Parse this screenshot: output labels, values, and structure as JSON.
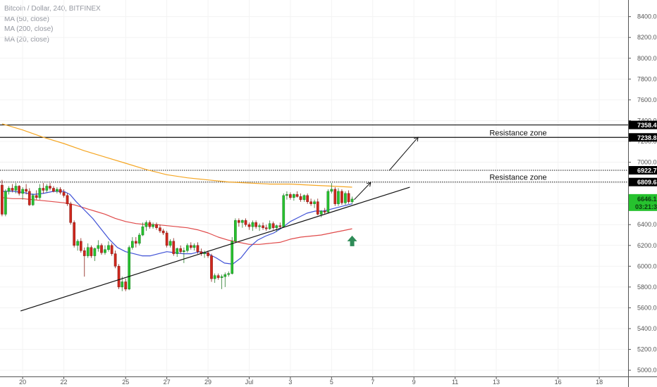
{
  "chart_data": {
    "type": "candlestick",
    "title": "Bitcoin / Dollar, 240, BITFINEX",
    "indicators": [
      {
        "name": "MA (50, close)",
        "color": "#e04a4a"
      },
      {
        "name": "MA (200, close)",
        "color": "#f5a623"
      },
      {
        "name": "MA (20, close)",
        "color": "#3f51d6"
      }
    ],
    "y_ticks": [
      5000,
      5200,
      5400,
      5600,
      5800,
      6000,
      6200,
      6400,
      6600,
      6800,
      7000,
      7200,
      7400,
      7600,
      7800,
      8000,
      8200,
      8400
    ],
    "y_tick_labels": [
      "5000.0",
      "5200.0",
      "5400.0",
      "5600.0",
      "5800.0",
      "6000.0",
      "6200.0",
      "6400.0",
      "6600.0",
      "6800.0",
      "7000.0",
      "7200.0",
      "7400.0",
      "7600.0",
      "7800.0",
      "8000.0",
      "8200.0",
      "8400.0"
    ],
    "ylim": [
      4940,
      8560
    ],
    "x_ticks": [
      {
        "label": "20",
        "day": 0
      },
      {
        "label": "22",
        "day": 2
      },
      {
        "label": "25",
        "day": 5
      },
      {
        "label": "27",
        "day": 7
      },
      {
        "label": "29",
        "day": 9
      },
      {
        "label": "Jul",
        "day": 11
      },
      {
        "label": "3",
        "day": 13
      },
      {
        "label": "5",
        "day": 15
      },
      {
        "label": "7",
        "day": 17
      },
      {
        "label": "9",
        "day": 19
      },
      {
        "label": "11",
        "day": 21
      },
      {
        "label": "13",
        "day": 23
      },
      {
        "label": "16",
        "day": 26
      },
      {
        "label": "18",
        "day": 28
      }
    ],
    "xlim": [
      -1.1,
      29.4
    ],
    "candles": [
      [
        -1.0,
        6780,
        6830,
        6480,
        6500
      ],
      [
        -0.83,
        6500,
        6740,
        6480,
        6720
      ],
      [
        -0.67,
        6720,
        6770,
        6690,
        6750
      ],
      [
        -0.5,
        6750,
        6790,
        6710,
        6730
      ],
      [
        -0.33,
        6730,
        6800,
        6700,
        6770
      ],
      [
        -0.17,
        6770,
        6780,
        6680,
        6700
      ],
      [
        0.0,
        6700,
        6760,
        6640,
        6740
      ],
      [
        0.17,
        6740,
        6790,
        6690,
        6720
      ],
      [
        0.33,
        6720,
        6750,
        6580,
        6590
      ],
      [
        0.5,
        6590,
        6700,
        6580,
        6680
      ],
      [
        0.67,
        6680,
        6730,
        6640,
        6660
      ],
      [
        0.83,
        6660,
        6790,
        6640,
        6750
      ],
      [
        1.0,
        6750,
        6800,
        6700,
        6730
      ],
      [
        1.17,
        6730,
        6790,
        6710,
        6770
      ],
      [
        1.33,
        6770,
        6800,
        6730,
        6750
      ],
      [
        1.5,
        6750,
        6770,
        6710,
        6720
      ],
      [
        1.67,
        6720,
        6760,
        6700,
        6740
      ],
      [
        1.83,
        6740,
        6760,
        6690,
        6710
      ],
      [
        2.0,
        6710,
        6740,
        6660,
        6680
      ],
      [
        2.17,
        6680,
        6700,
        6580,
        6600
      ],
      [
        2.33,
        6600,
        6620,
        6400,
        6420
      ],
      [
        2.5,
        6420,
        6440,
        6180,
        6200
      ],
      [
        2.67,
        6200,
        6260,
        6150,
        6240
      ],
      [
        2.83,
        6240,
        6270,
        6130,
        6150
      ],
      [
        3.0,
        6150,
        6180,
        5900,
        6100
      ],
      [
        3.17,
        6100,
        6220,
        6080,
        6180
      ],
      [
        3.33,
        6180,
        6200,
        6080,
        6100
      ],
      [
        3.5,
        6100,
        6180,
        6050,
        6170
      ],
      [
        3.67,
        6170,
        6250,
        6140,
        6200
      ],
      [
        3.83,
        6200,
        6220,
        6110,
        6130
      ],
      [
        4.0,
        6130,
        6200,
        6110,
        6160
      ],
      [
        4.17,
        6160,
        6240,
        6140,
        6200
      ],
      [
        4.33,
        6200,
        6220,
        6100,
        6120
      ],
      [
        4.5,
        6120,
        6150,
        5980,
        6000
      ],
      [
        4.67,
        6000,
        6020,
        5780,
        5800
      ],
      [
        4.83,
        5800,
        5900,
        5760,
        5850
      ],
      [
        5.0,
        5850,
        5880,
        5760,
        5780
      ],
      [
        5.17,
        5780,
        6200,
        5770,
        6180
      ],
      [
        5.33,
        6180,
        6280,
        6160,
        6240
      ],
      [
        5.5,
        6240,
        6280,
        6180,
        6220
      ],
      [
        5.67,
        6220,
        6320,
        6200,
        6300
      ],
      [
        5.83,
        6300,
        6420,
        6290,
        6380
      ],
      [
        6.0,
        6380,
        6440,
        6340,
        6420
      ],
      [
        6.17,
        6420,
        6440,
        6360,
        6380
      ],
      [
        6.33,
        6380,
        6420,
        6360,
        6400
      ],
      [
        6.5,
        6400,
        6420,
        6350,
        6370
      ],
      [
        6.67,
        6370,
        6400,
        6320,
        6340
      ],
      [
        6.83,
        6340,
        6360,
        6300,
        6320
      ],
      [
        7.0,
        6320,
        6340,
        6180,
        6200
      ],
      [
        7.17,
        6200,
        6260,
        6180,
        6240
      ],
      [
        7.33,
        6240,
        6270,
        6100,
        6120
      ],
      [
        7.5,
        6120,
        6180,
        6090,
        6170
      ],
      [
        7.67,
        6170,
        6200,
        6120,
        6140
      ],
      [
        7.83,
        6140,
        6180,
        6030,
        6150
      ],
      [
        8.0,
        6150,
        6220,
        6130,
        6200
      ],
      [
        8.17,
        6200,
        6230,
        6160,
        6180
      ],
      [
        8.33,
        6180,
        6220,
        6150,
        6200
      ],
      [
        8.5,
        6200,
        6230,
        6120,
        6140
      ],
      [
        8.67,
        6140,
        6170,
        6100,
        6120
      ],
      [
        8.83,
        6120,
        6150,
        6080,
        6130
      ],
      [
        9.0,
        6130,
        6150,
        6080,
        6100
      ],
      [
        9.17,
        6100,
        6120,
        5850,
        5880
      ],
      [
        9.33,
        5880,
        5930,
        5840,
        5910
      ],
      [
        9.5,
        5910,
        5930,
        5870,
        5890
      ],
      [
        9.67,
        5890,
        5920,
        5780,
        5900
      ],
      [
        9.83,
        5900,
        5940,
        5800,
        5920
      ],
      [
        10.0,
        5920,
        5950,
        5900,
        5930
      ],
      [
        10.17,
        5930,
        6280,
        5920,
        6240
      ],
      [
        10.33,
        6240,
        6460,
        6230,
        6440
      ],
      [
        10.5,
        6440,
        6460,
        6380,
        6420
      ],
      [
        10.67,
        6420,
        6450,
        6370,
        6440
      ],
      [
        10.83,
        6440,
        6460,
        6380,
        6400
      ],
      [
        11.0,
        6400,
        6420,
        6350,
        6380
      ],
      [
        11.17,
        6380,
        6440,
        6340,
        6420
      ],
      [
        11.33,
        6420,
        6440,
        6360,
        6380
      ],
      [
        11.5,
        6380,
        6410,
        6340,
        6390
      ],
      [
        11.67,
        6390,
        6420,
        6350,
        6370
      ],
      [
        11.83,
        6370,
        6400,
        6340,
        6360
      ],
      [
        12.0,
        6360,
        6440,
        6350,
        6410
      ],
      [
        12.17,
        6410,
        6430,
        6350,
        6370
      ],
      [
        12.33,
        6370,
        6400,
        6330,
        6390
      ],
      [
        12.5,
        6390,
        6420,
        6360,
        6380
      ],
      [
        12.67,
        6380,
        6700,
        6370,
        6680
      ],
      [
        12.83,
        6680,
        6720,
        6640,
        6690
      ],
      [
        13.0,
        6690,
        6710,
        6640,
        6660
      ],
      [
        13.17,
        6660,
        6700,
        6630,
        6690
      ],
      [
        13.33,
        6690,
        6720,
        6660,
        6670
      ],
      [
        13.5,
        6670,
        6700,
        6620,
        6640
      ],
      [
        13.67,
        6640,
        6690,
        6620,
        6680
      ],
      [
        13.83,
        6680,
        6700,
        6600,
        6620
      ],
      [
        14.0,
        6620,
        6650,
        6580,
        6600
      ],
      [
        14.17,
        6600,
        6640,
        6560,
        6620
      ],
      [
        14.33,
        6620,
        6650,
        6490,
        6500
      ],
      [
        14.5,
        6500,
        6540,
        6470,
        6530
      ],
      [
        14.67,
        6530,
        6560,
        6500,
        6520
      ],
      [
        14.83,
        6520,
        6740,
        6510,
        6720
      ],
      [
        15.0,
        6720,
        6800,
        6700,
        6740
      ],
      [
        15.17,
        6740,
        6760,
        6580,
        6600
      ],
      [
        15.33,
        6600,
        6750,
        6580,
        6720
      ],
      [
        15.5,
        6720,
        6740,
        6590,
        6610
      ],
      [
        15.67,
        6610,
        6720,
        6590,
        6700
      ],
      [
        15.83,
        6700,
        6730,
        6600,
        6620
      ],
      [
        16.0,
        6620,
        6670,
        6600,
        6646
      ]
    ],
    "ma20": [
      [
        -1.0,
        6720
      ],
      [
        -0.5,
        6720
      ],
      [
        0.0,
        6710
      ],
      [
        0.5,
        6690
      ],
      [
        1.0,
        6700
      ],
      [
        1.5,
        6720
      ],
      [
        2.0,
        6720
      ],
      [
        2.3,
        6690
      ],
      [
        2.6,
        6620
      ],
      [
        3.0,
        6540
      ],
      [
        3.4,
        6460
      ],
      [
        3.8,
        6360
      ],
      [
        4.2,
        6260
      ],
      [
        4.6,
        6180
      ],
      [
        5.0,
        6140
      ],
      [
        5.4,
        6120
      ],
      [
        5.8,
        6100
      ],
      [
        6.2,
        6100
      ],
      [
        6.6,
        6120
      ],
      [
        7.0,
        6140
      ],
      [
        7.4,
        6130
      ],
      [
        7.8,
        6120
      ],
      [
        8.2,
        6120
      ],
      [
        8.6,
        6140
      ],
      [
        9.0,
        6120
      ],
      [
        9.4,
        6080
      ],
      [
        9.8,
        6030
      ],
      [
        10.2,
        6020
      ],
      [
        10.6,
        6080
      ],
      [
        11.0,
        6180
      ],
      [
        11.4,
        6250
      ],
      [
        11.8,
        6290
      ],
      [
        12.2,
        6320
      ],
      [
        12.6,
        6370
      ],
      [
        13.0,
        6430
      ],
      [
        13.4,
        6470
      ],
      [
        13.8,
        6510
      ],
      [
        14.2,
        6530
      ],
      [
        14.6,
        6530
      ],
      [
        15.0,
        6550
      ],
      [
        15.4,
        6570
      ],
      [
        15.8,
        6590
      ],
      [
        16.0,
        6600
      ]
    ],
    "ma50": [
      [
        -1.0,
        6660
      ],
      [
        -0.5,
        6650
      ],
      [
        0.0,
        6650
      ],
      [
        0.5,
        6640
      ],
      [
        1.0,
        6630
      ],
      [
        1.5,
        6620
      ],
      [
        2.0,
        6610
      ],
      [
        2.5,
        6590
      ],
      [
        3.0,
        6560
      ],
      [
        3.5,
        6530
      ],
      [
        4.0,
        6500
      ],
      [
        4.5,
        6460
      ],
      [
        5.0,
        6430
      ],
      [
        5.5,
        6410
      ],
      [
        6.0,
        6400
      ],
      [
        6.5,
        6400
      ],
      [
        7.0,
        6390
      ],
      [
        7.5,
        6380
      ],
      [
        8.0,
        6370
      ],
      [
        8.5,
        6350
      ],
      [
        9.0,
        6320
      ],
      [
        9.5,
        6280
      ],
      [
        10.0,
        6250
      ],
      [
        10.5,
        6230
      ],
      [
        11.0,
        6210
      ],
      [
        11.5,
        6210
      ],
      [
        12.0,
        6220
      ],
      [
        12.5,
        6230
      ],
      [
        13.0,
        6260
      ],
      [
        13.5,
        6280
      ],
      [
        14.0,
        6290
      ],
      [
        14.5,
        6300
      ],
      [
        15.0,
        6320
      ],
      [
        15.5,
        6340
      ],
      [
        16.0,
        6360
      ]
    ],
    "ma200": [
      [
        -1.0,
        7370
      ],
      [
        0.0,
        7310
      ],
      [
        1.0,
        7240
      ],
      [
        2.0,
        7180
      ],
      [
        3.0,
        7110
      ],
      [
        4.0,
        7050
      ],
      [
        5.0,
        6990
      ],
      [
        6.0,
        6930
      ],
      [
        7.0,
        6880
      ],
      [
        8.0,
        6850
      ],
      [
        9.0,
        6830
      ],
      [
        10.0,
        6810
      ],
      [
        11.0,
        6800
      ],
      [
        12.0,
        6790
      ],
      [
        13.0,
        6790
      ],
      [
        14.0,
        6780
      ],
      [
        15.0,
        6770
      ],
      [
        16.0,
        6760
      ]
    ],
    "trendline": [
      [
        -0.1,
        5570
      ],
      [
        18.8,
        6760
      ]
    ],
    "arrow_small": [
      [
        16.1,
        6640
      ],
      [
        16.9,
        6805
      ]
    ],
    "arrow_big": [
      [
        17.8,
        6920
      ],
      [
        19.2,
        7240
      ]
    ],
    "up_arrow": {
      "day": 16.0,
      "value": 6240
    },
    "levels": [
      {
        "value": 7358.4,
        "label": "7358.4",
        "style": "solid"
      },
      {
        "value": 7238.8,
        "label": "7238.8",
        "style": "solid"
      },
      {
        "value": 6922.7,
        "label": "6922.7",
        "style": "dotted"
      },
      {
        "value": 6809.6,
        "label": "6809.6",
        "style": "dotted"
      }
    ],
    "zone_labels": [
      {
        "text": "Resistance zone",
        "value": 7285
      },
      {
        "text": "Resistance zone",
        "value": 6857
      }
    ],
    "last_price": {
      "value": 6646.1,
      "label": "6646.1",
      "countdown": "03:21:38"
    }
  }
}
